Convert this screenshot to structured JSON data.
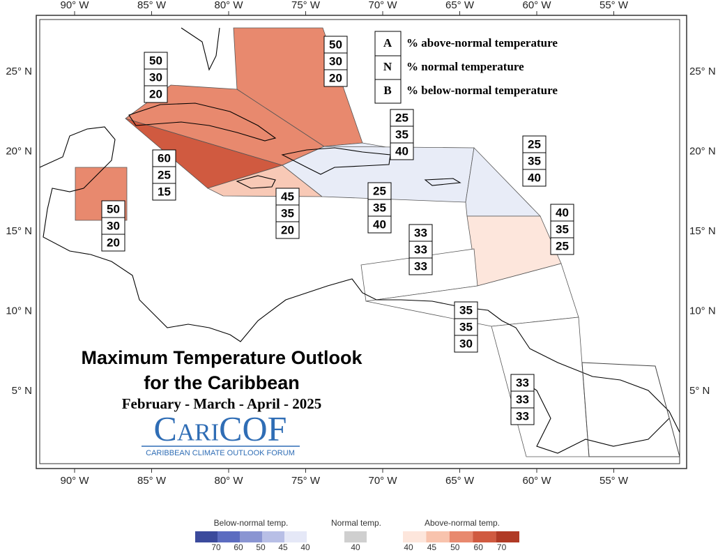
{
  "map": {
    "lon_labels": [
      "90° W",
      "85° W",
      "80° W",
      "75° W",
      "70° W",
      "65° W",
      "60° W",
      "55° W"
    ],
    "lat_labels": [
      "25° N",
      "20° N",
      "15° N",
      "10° N",
      "5° N"
    ],
    "regions": [
      {
        "above": 50,
        "normal": 30,
        "below": 20,
        "color": "#e8896e"
      },
      {
        "above": 50,
        "normal": 30,
        "below": 20,
        "color": "#e8896e"
      },
      {
        "above": 60,
        "normal": 25,
        "below": 15,
        "color": "#d05a40"
      },
      {
        "above": 45,
        "normal": 35,
        "below": 20,
        "color": "#f8c9b6"
      },
      {
        "above": 25,
        "normal": 35,
        "below": 40,
        "color": "#e8ecf7"
      },
      {
        "above": 25,
        "normal": 35,
        "below": 40,
        "color": "#e8ecf7"
      },
      {
        "above": 25,
        "normal": 35,
        "below": 40,
        "color": "#e8ecf7"
      },
      {
        "above": 50,
        "normal": 30,
        "below": 20,
        "color": "#e8896e"
      },
      {
        "above": 40,
        "normal": 35,
        "below": 25,
        "color": "#fde6dc"
      },
      {
        "above": 33,
        "normal": 33,
        "below": 33,
        "color": "#ffffff"
      },
      {
        "above": 35,
        "normal": 35,
        "below": 30,
        "color": "#ffffff"
      },
      {
        "above": 33,
        "normal": 33,
        "below": 33,
        "color": "#ffffff"
      }
    ],
    "key": [
      {
        "letter": "A",
        "text": "% above-normal temperature"
      },
      {
        "letter": "N",
        "text": "% normal temperature"
      },
      {
        "letter": "B",
        "text": "% below-normal temperature"
      }
    ],
    "title": "Maximum Temperature Outlook",
    "title2": "for the Caribbean",
    "season": "February - March - April - 2025",
    "logo": "CariCOF",
    "logo_sub": "CARIBBEAN CLIMATE OUTLOOK FORUM",
    "colorbar": {
      "below_label": "Below-normal temp.",
      "below_ticks": [
        70,
        60,
        50,
        45,
        40
      ],
      "below_colors": [
        "#3b4a9c",
        "#5c6cc0",
        "#8a95d2",
        "#b8bfe6",
        "#e5e8f7"
      ],
      "normal_label": "Normal temp.",
      "normal_ticks": [
        40
      ],
      "normal_colors": [
        "#cfcfcf"
      ],
      "above_label": "Above-normal temp.",
      "above_ticks": [
        40,
        45,
        50,
        60,
        70
      ],
      "above_colors": [
        "#fde6dc",
        "#f8c3ad",
        "#e8896e",
        "#d05a40",
        "#b03a25"
      ]
    }
  }
}
